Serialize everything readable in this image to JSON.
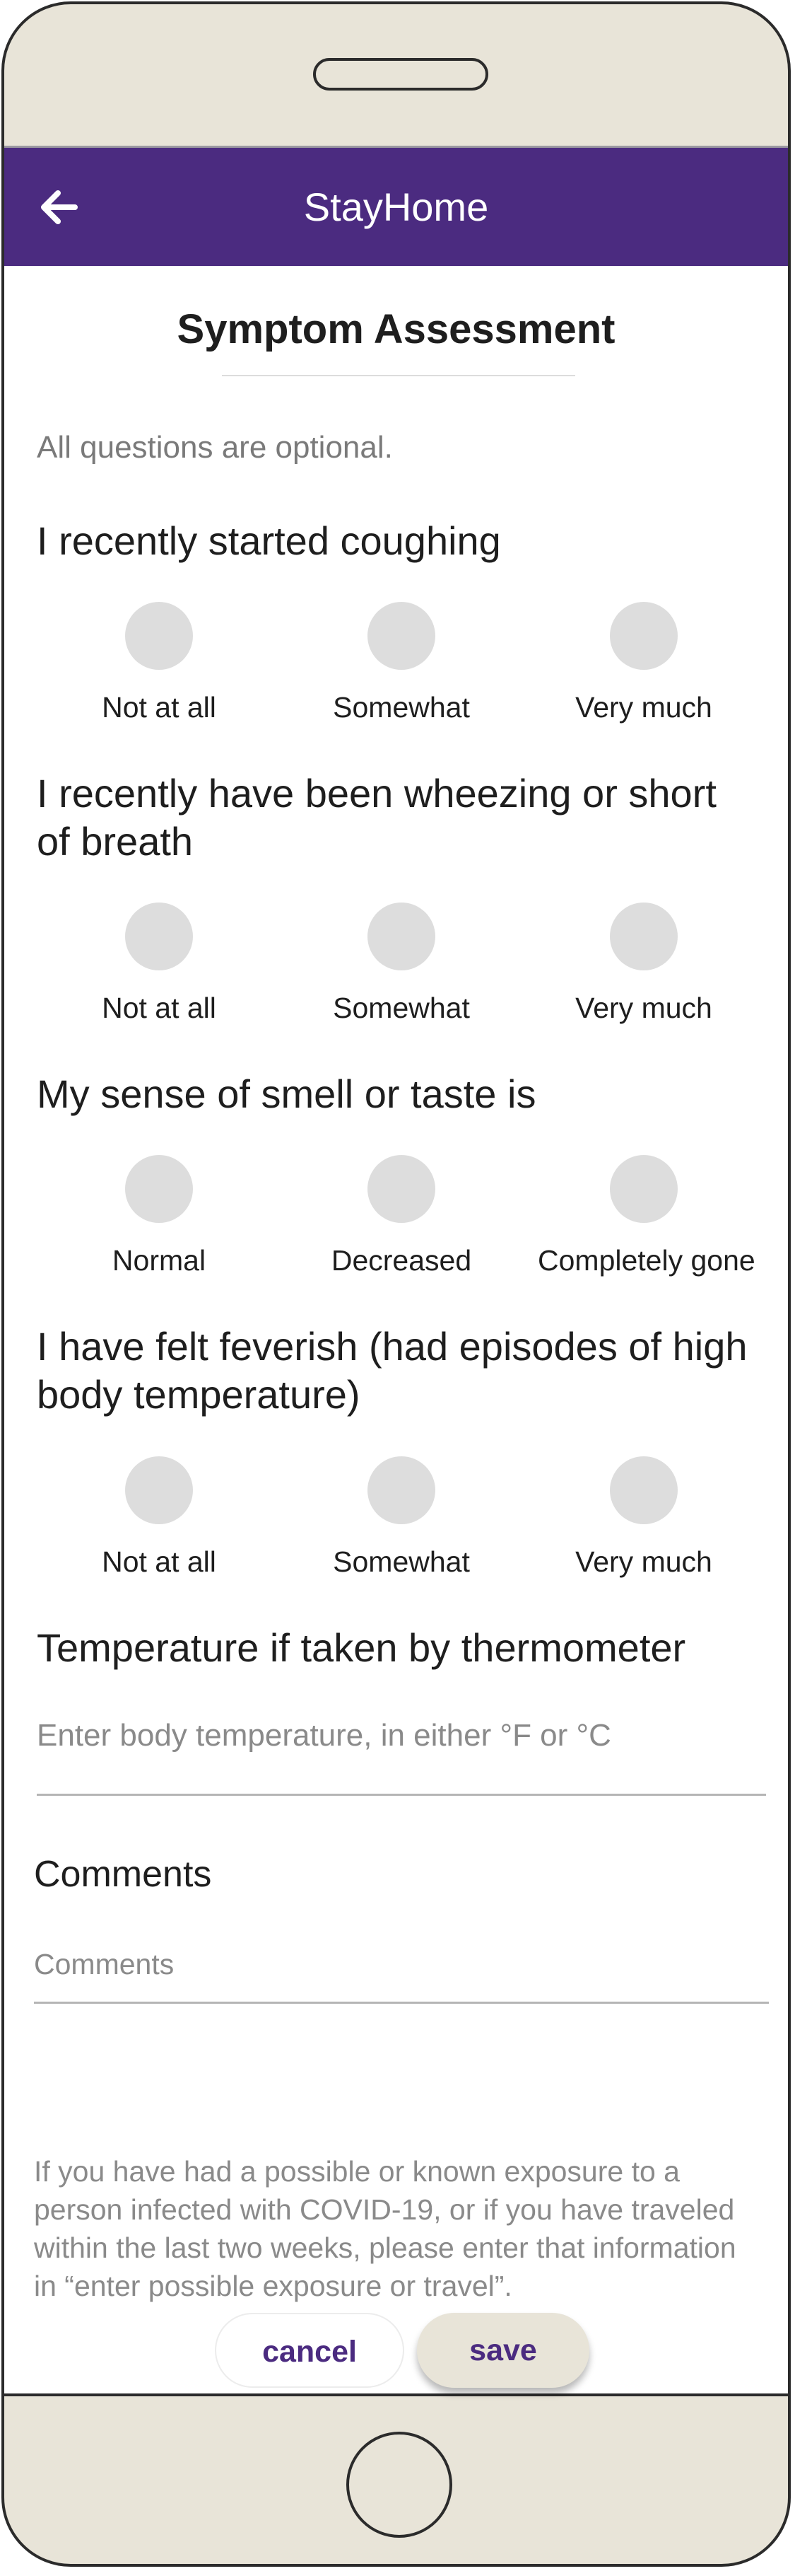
{
  "app": {
    "title": "StayHome",
    "back_icon": "arrow-left-icon"
  },
  "page": {
    "title": "Symptom Assessment",
    "hint": "All questions are optional."
  },
  "questions": [
    {
      "text": "I recently started coughing",
      "options": [
        "Not at all",
        "Somewhat",
        "Very much"
      ]
    },
    {
      "text": "I recently have been wheezing or short of breath",
      "options": [
        "Not at all",
        "Somewhat",
        "Very much"
      ]
    },
    {
      "text": "My sense of smell or taste is",
      "options": [
        "Normal",
        "Decreased",
        "Completely gone"
      ]
    },
    {
      "text": "I have felt feverish (had episodes of high body temperature)",
      "options": [
        "Not at all",
        "Somewhat",
        "Very much"
      ]
    }
  ],
  "temperature": {
    "label": "Temperature if taken by thermometer",
    "placeholder": "Enter body temperature, in either °F or °C",
    "value": ""
  },
  "comments": {
    "label": "Comments",
    "placeholder": "Comments",
    "value": ""
  },
  "note": "If you have had a possible or known exposure to a person infected with COVID-19, or if you have traveled within the last two weeks, please enter that information in “enter possible exposure or travel”.",
  "actions": {
    "cancel_label": "cancel",
    "save_label": "save"
  },
  "colors": {
    "app_bar": "#4b2b80",
    "accent_text": "#4b2b80",
    "device_frame": "#e8e4d8",
    "radio_unselected": "#dddddd"
  }
}
